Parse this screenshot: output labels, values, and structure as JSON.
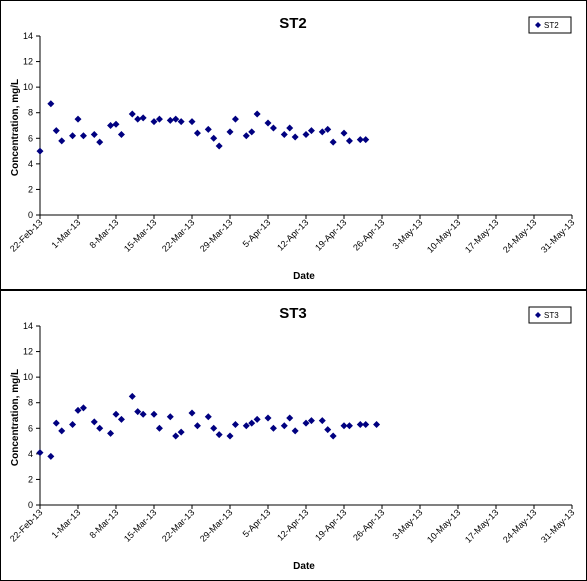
{
  "chart_data": [
    {
      "type": "scatter",
      "title": "ST2",
      "xlabel": "Date",
      "ylabel": "Concentration, mg/L",
      "ylim": [
        0,
        14
      ],
      "yticks": [
        "0",
        "2",
        "4",
        "6",
        "8",
        "10",
        "12",
        "14"
      ],
      "xlim": [
        "2013-02-22",
        "2013-05-31"
      ],
      "xticks": [
        "22-Feb-13",
        "1-Mar-13",
        "8-Mar-13",
        "15-Mar-13",
        "22-Mar-13",
        "29-Mar-13",
        "5-Apr-13",
        "12-Apr-13",
        "19-Apr-13",
        "26-Apr-13",
        "3-May-13",
        "10-May-13",
        "17-May-13",
        "24-May-13",
        "31-May-13"
      ],
      "legend": "top-right",
      "grid": false,
      "marker_color": "#000080",
      "series": [
        {
          "name": "ST2",
          "x": [
            "2013-02-22",
            "2013-02-24",
            "2013-02-25",
            "2013-02-26",
            "2013-02-28",
            "2013-03-01",
            "2013-03-02",
            "2013-03-04",
            "2013-03-05",
            "2013-03-07",
            "2013-03-08",
            "2013-03-09",
            "2013-03-11",
            "2013-03-12",
            "2013-03-13",
            "2013-03-15",
            "2013-03-16",
            "2013-03-18",
            "2013-03-19",
            "2013-03-20",
            "2013-03-22",
            "2013-03-23",
            "2013-03-25",
            "2013-03-26",
            "2013-03-27",
            "2013-03-29",
            "2013-03-30",
            "2013-04-01",
            "2013-04-02",
            "2013-04-03",
            "2013-04-05",
            "2013-04-06",
            "2013-04-08",
            "2013-04-09",
            "2013-04-10",
            "2013-04-12",
            "2013-04-13",
            "2013-04-15",
            "2013-04-16",
            "2013-04-17",
            "2013-04-19",
            "2013-04-20",
            "2013-04-22",
            "2013-04-23"
          ],
          "y": [
            5.0,
            8.7,
            6.6,
            5.8,
            6.2,
            7.5,
            6.2,
            6.3,
            5.7,
            7.0,
            7.1,
            6.3,
            7.9,
            7.5,
            7.6,
            7.3,
            7.5,
            7.4,
            7.5,
            7.3,
            7.3,
            6.4,
            6.7,
            6.0,
            5.4,
            6.5,
            7.5,
            6.2,
            6.5,
            7.9,
            7.2,
            6.8,
            6.3,
            6.8,
            6.1,
            6.3,
            6.6,
            6.5,
            6.7,
            5.7,
            6.4,
            5.8,
            5.9,
            5.9
          ]
        }
      ]
    },
    {
      "type": "scatter",
      "title": "ST3",
      "xlabel": "Date",
      "ylabel": "Concentration, mg/L",
      "ylim": [
        0,
        14
      ],
      "yticks": [
        "0",
        "2",
        "4",
        "6",
        "8",
        "10",
        "12",
        "14"
      ],
      "xlim": [
        "2013-02-22",
        "2013-05-31"
      ],
      "xticks": [
        "22-Feb-13",
        "1-Mar-13",
        "8-Mar-13",
        "15-Mar-13",
        "22-Mar-13",
        "29-Mar-13",
        "5-Apr-13",
        "12-Apr-13",
        "19-Apr-13",
        "26-Apr-13",
        "3-May-13",
        "10-May-13",
        "17-May-13",
        "24-May-13",
        "31-May-13"
      ],
      "legend": "top-right",
      "grid": false,
      "marker_color": "#000080",
      "series": [
        {
          "name": "ST3",
          "x": [
            "2013-02-22",
            "2013-02-24",
            "2013-02-25",
            "2013-02-26",
            "2013-02-28",
            "2013-03-01",
            "2013-03-02",
            "2013-03-04",
            "2013-03-05",
            "2013-03-07",
            "2013-03-08",
            "2013-03-09",
            "2013-03-11",
            "2013-03-12",
            "2013-03-13",
            "2013-03-15",
            "2013-03-16",
            "2013-03-18",
            "2013-03-19",
            "2013-03-20",
            "2013-03-22",
            "2013-03-23",
            "2013-03-25",
            "2013-03-26",
            "2013-03-27",
            "2013-03-29",
            "2013-03-30",
            "2013-04-01",
            "2013-04-02",
            "2013-04-03",
            "2013-04-05",
            "2013-04-06",
            "2013-04-08",
            "2013-04-09",
            "2013-04-10",
            "2013-04-12",
            "2013-04-13",
            "2013-04-15",
            "2013-04-16",
            "2013-04-17",
            "2013-04-19",
            "2013-04-20",
            "2013-04-22",
            "2013-04-23",
            "2013-04-25"
          ],
          "y": [
            4.1,
            3.8,
            6.4,
            5.8,
            6.3,
            7.4,
            7.6,
            6.5,
            6.0,
            5.6,
            7.1,
            6.7,
            8.5,
            7.3,
            7.1,
            7.1,
            6.0,
            6.9,
            5.4,
            5.7,
            7.2,
            6.2,
            6.9,
            6.0,
            5.5,
            5.4,
            6.3,
            6.2,
            6.4,
            6.7,
            6.8,
            6.0,
            6.2,
            6.8,
            5.8,
            6.4,
            6.6,
            6.6,
            5.9,
            5.4,
            6.2,
            6.2,
            6.3,
            6.3,
            6.3
          ]
        }
      ]
    }
  ]
}
